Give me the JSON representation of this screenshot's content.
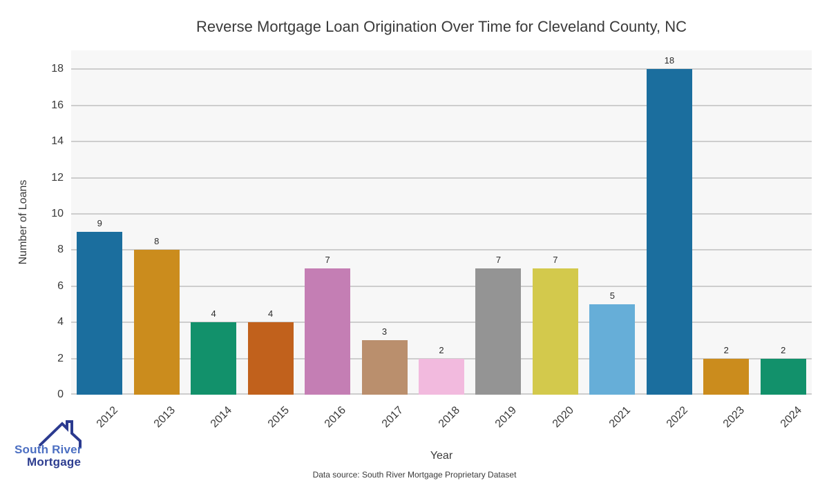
{
  "title": "Reverse Mortgage Loan Origination Over Time for Cleveland County, NC",
  "chart_data": {
    "type": "bar",
    "title": "Reverse Mortgage Loan Origination Over Time for Cleveland County, NC",
    "categories": [
      "2012",
      "2013",
      "2014",
      "2015",
      "2016",
      "2017",
      "2018",
      "2019",
      "2020",
      "2021",
      "2022",
      "2023",
      "2024"
    ],
    "values": [
      9,
      8,
      4,
      4,
      7,
      3,
      2,
      7,
      7,
      5,
      18,
      2,
      2
    ],
    "bar_colors": [
      "#1b6e9e",
      "#cb8c1d",
      "#12916b",
      "#c1611c",
      "#c47eb4",
      "#ba8f6d",
      "#f2bade",
      "#949494",
      "#d3c94c",
      "#66aed8",
      "#1b6e9e",
      "#cb8c1d",
      "#12916b"
    ],
    "xlabel": "Year",
    "ylabel": "Number of Loans",
    "ylim": [
      0,
      19
    ],
    "yticks": [
      0,
      2,
      4,
      6,
      8,
      10,
      12,
      14,
      16,
      18
    ],
    "grid": true,
    "legend": false,
    "value_labels": true
  },
  "footer": {
    "data_source": "Data source: South River Mortgage Proprietary Dataset"
  },
  "logo": {
    "line1": "South River",
    "line2": "Mortgage",
    "roof_color": "#2b3a8f",
    "line1_color": "#4c6fc2",
    "line2_color": "#2d3d90"
  },
  "colors": {
    "plot_background": "#f7f7f7",
    "gridline": "#cdcdcd",
    "text": "#3a3a3a",
    "value_label_text": "#2b2b2b"
  }
}
